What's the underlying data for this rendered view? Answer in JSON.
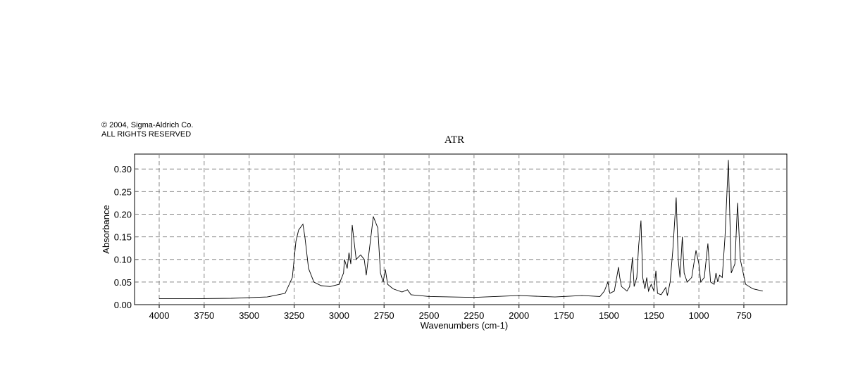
{
  "chart_data": {
    "type": "line",
    "notes": [
      "© 2004, Sigma-Aldrich Co.",
      "ALL RIGHTS RESERVED"
    ],
    "title": "ATR",
    "x_label": "Wavenumbers (cm-1)",
    "y_label": "Absorbance",
    "xlim": [
      4137,
      511
    ],
    "ylim": [
      0,
      0.333
    ],
    "xticks": [
      4000,
      3750,
      3500,
      3250,
      3000,
      2750,
      2500,
      2250,
      2000,
      1750,
      1500,
      1250,
      1000,
      750
    ],
    "yticks": [
      {
        "value": 0,
        "label": "0.00"
      },
      {
        "value": 0.05,
        "label": "0.05"
      },
      {
        "value": 0.1,
        "label": "0.10"
      },
      {
        "value": 0.15,
        "label": "0.15"
      },
      {
        "value": 0.2,
        "label": "0.20"
      },
      {
        "value": 0.25,
        "label": "0.25"
      },
      {
        "value": 0.3,
        "label": "0.30"
      }
    ],
    "grid": true,
    "color": "#000000",
    "x": [
      4000,
      3800,
      3600,
      3400,
      3300,
      3260,
      3240,
      3225,
      3201,
      3190,
      3170,
      3140,
      3100,
      3050,
      3000,
      2975,
      2970,
      2955,
      2945,
      2935,
      2927,
      2905,
      2880,
      2860,
      2849,
      2820,
      2810,
      2785,
      2770,
      2755,
      2743,
      2730,
      2700,
      2650,
      2620,
      2600,
      2500,
      2250,
      2000,
      1800,
      1650,
      1550,
      1525,
      1506,
      1495,
      1470,
      1447,
      1440,
      1430,
      1400,
      1385,
      1369,
      1360,
      1345,
      1335,
      1322,
      1312,
      1300,
      1290,
      1280,
      1265,
      1250,
      1239,
      1230,
      1210,
      1184,
      1175,
      1160,
      1145,
      1126,
      1115,
      1105,
      1092,
      1082,
      1065,
      1040,
      1016,
      1000,
      990,
      970,
      950,
      935,
      915,
      905,
      895,
      885,
      870,
      855,
      836,
      820,
      800,
      785,
      770,
      740,
      700,
      645
    ],
    "values": [
      0.013,
      0.013,
      0.014,
      0.017,
      0.025,
      0.06,
      0.14,
      0.165,
      0.178,
      0.15,
      0.08,
      0.05,
      0.042,
      0.04,
      0.045,
      0.07,
      0.1,
      0.08,
      0.115,
      0.09,
      0.176,
      0.1,
      0.11,
      0.1,
      0.065,
      0.16,
      0.195,
      0.17,
      0.07,
      0.05,
      0.078,
      0.045,
      0.035,
      0.028,
      0.033,
      0.022,
      0.018,
      0.016,
      0.02,
      0.017,
      0.02,
      0.018,
      0.03,
      0.05,
      0.025,
      0.03,
      0.083,
      0.06,
      0.04,
      0.03,
      0.04,
      0.105,
      0.04,
      0.06,
      0.13,
      0.186,
      0.06,
      0.035,
      0.06,
      0.03,
      0.045,
      0.03,
      0.075,
      0.025,
      0.022,
      0.038,
      0.02,
      0.05,
      0.12,
      0.237,
      0.1,
      0.06,
      0.15,
      0.07,
      0.05,
      0.06,
      0.12,
      0.09,
      0.05,
      0.06,
      0.135,
      0.05,
      0.045,
      0.07,
      0.05,
      0.065,
      0.06,
      0.15,
      0.32,
      0.07,
      0.09,
      0.225,
      0.1,
      0.045,
      0.035,
      0.03
    ]
  }
}
